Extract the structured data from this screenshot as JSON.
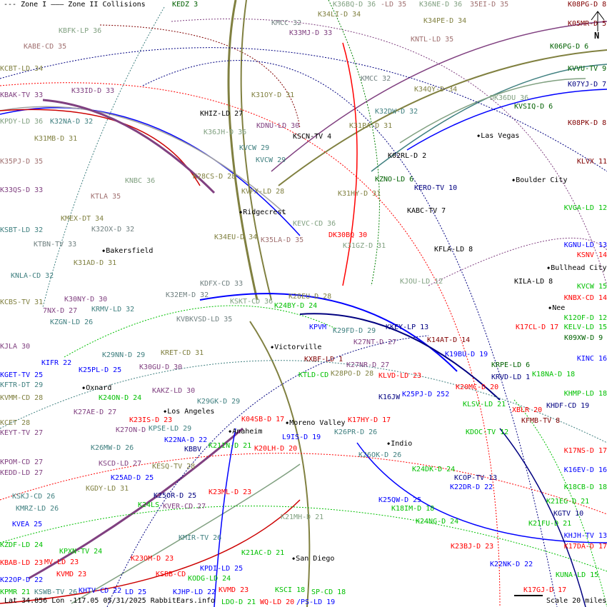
{
  "legend": {
    "text": "--- Zone I  ——— Zone II Collisions"
  },
  "footer": {
    "coords": "Lat 34.856 Lon -117.05 05/31/2025 RabbitEars.info",
    "scale": "Scale 20 miles"
  },
  "compass": {
    "label": "N",
    "icon": "north-arrow-icon"
  },
  "colors": {
    "olive": "#808040",
    "purple": "#804080",
    "greygreen": "#80a080",
    "rosy": "#a07070",
    "teal": "#408080",
    "red": "#ff0000",
    "green": "#00c000",
    "blue": "#0000ff",
    "darkblue": "#000080",
    "darkred": "#800000",
    "darkgreen": "#006000",
    "black": "#000000",
    "grey": "#708080"
  },
  "cities": [
    "Las Vegas",
    "Boulder City",
    "Ridgecrest",
    "Bakersfield",
    "Bullhead City",
    "Victorville",
    "Oxnard",
    "Los Angeles",
    "Moreno Valley",
    "Anaheim",
    "Indio",
    "San Diego",
    "Nee"
  ],
  "stations": [
    {
      "label": "KEDZ 3",
      "color": "darkgreen"
    },
    {
      "label": "KBFK-LP 36",
      "color": "greygreen"
    },
    {
      "label": "KABE-CD 35",
      "color": "rosy"
    },
    {
      "label": "KCBT-LD 34",
      "color": "olive"
    },
    {
      "label": "KBAK-TV 33",
      "color": "purple"
    },
    {
      "label": "K33ID-D 33",
      "color": "purple"
    },
    {
      "label": "KPDY-LD 36",
      "color": "greygreen"
    },
    {
      "label": "K32NA-D 32",
      "color": "teal"
    },
    {
      "label": "K31MB-D 31",
      "color": "olive"
    },
    {
      "label": "K35PJ-D 35",
      "color": "rosy"
    },
    {
      "label": "K33QS-D 33",
      "color": "purple"
    },
    {
      "label": "KTLA 35",
      "color": "rosy"
    },
    {
      "label": "KNBC 36",
      "color": "greygreen"
    },
    {
      "label": "K28CS-D 28",
      "color": "olive"
    },
    {
      "label": "KVPX-LD 28",
      "color": "olive"
    },
    {
      "label": "KHIZ-LD 27",
      "color": "black"
    },
    {
      "label": "K31OY-D 31",
      "color": "olive"
    },
    {
      "label": "KDNU-LD 30",
      "color": "purple"
    },
    {
      "label": "K36JH-D 36",
      "color": "greygreen"
    },
    {
      "label": "KVCW 29",
      "color": "teal"
    },
    {
      "label": "KVCW 29",
      "color": "teal"
    },
    {
      "label": "KSCN-TV 4",
      "color": "black"
    },
    {
      "label": "KMCC 32",
      "color": "grey"
    },
    {
      "label": "K33MJ-D 33",
      "color": "purple"
    },
    {
      "label": "K36BQ-D 36",
      "color": "greygreen"
    },
    {
      "label": "-LD 35",
      "color": "rosy"
    },
    {
      "label": "K34LI-D 34",
      "color": "olive"
    },
    {
      "label": "K36NE-D 36",
      "color": "greygreen"
    },
    {
      "label": "35EI-D 35",
      "color": "rosy"
    },
    {
      "label": "K34PE-D 34",
      "color": "olive"
    },
    {
      "label": "KNTL-LD 35",
      "color": "rosy"
    },
    {
      "label": "KMCC 32",
      "color": "grey"
    },
    {
      "label": "K34QY-D 34",
      "color": "olive"
    },
    {
      "label": "K32DW-D 32",
      "color": "teal"
    },
    {
      "label": "K31PA-D 31",
      "color": "olive"
    },
    {
      "label": "DK36DU 36",
      "color": "greygreen"
    },
    {
      "label": "KVSIQ-D 6",
      "color": "darkgreen"
    },
    {
      "label": "K08PG-D 8",
      "color": "darkred"
    },
    {
      "label": "K05MR-D 5",
      "color": "darkred"
    },
    {
      "label": "K06PG-D 6",
      "color": "darkgreen"
    },
    {
      "label": "KVVU-TV 9",
      "color": "darkgreen"
    },
    {
      "label": "K07YJ-D 7",
      "color": "darkblue"
    },
    {
      "label": "K08PK-D 8",
      "color": "darkred"
    },
    {
      "label": "KLVX 11",
      "color": "darkred"
    },
    {
      "label": "K02RL-D 2",
      "color": "black"
    },
    {
      "label": "KZNO-LD 6",
      "color": "darkgreen"
    },
    {
      "label": "KERO-TV 10",
      "color": "darkblue"
    },
    {
      "label": "K31HY-D 31",
      "color": "olive"
    },
    {
      "label": "KABC-TV 7",
      "color": "black"
    },
    {
      "label": "KVGA-LD 12",
      "color": "green"
    },
    {
      "label": "KEVC-CD 36",
      "color": "greygreen"
    },
    {
      "label": "K34EU-D 34",
      "color": "olive"
    },
    {
      "label": "K35LA-D 35",
      "color": "rosy"
    },
    {
      "label": "DK30BQ 30",
      "color": "red"
    },
    {
      "label": "K31GZ-D 31",
      "color": "greygreen"
    },
    {
      "label": "KFLA-LD 8",
      "color": "black"
    },
    {
      "label": "KSNV 14",
      "color": "red"
    },
    {
      "label": "KGNU-LD 13",
      "color": "blue"
    },
    {
      "label": "KILA-LD 8",
      "color": "black"
    },
    {
      "label": "KVCW 15",
      "color": "green"
    },
    {
      "label": "KNBX-CD 14",
      "color": "red"
    },
    {
      "label": "K12OF-D 12",
      "color": "green"
    },
    {
      "label": "KJOU-LD 12",
      "color": "greygreen"
    },
    {
      "label": "KMEX-DT 34",
      "color": "olive"
    },
    {
      "label": "KSBT-LD 32",
      "color": "teal"
    },
    {
      "label": "K32OX-D 32",
      "color": "grey"
    },
    {
      "label": "KTBN-TV 33",
      "color": "grey"
    },
    {
      "label": "K31AD-D 31",
      "color": "olive"
    },
    {
      "label": "KNLA-CD 32",
      "color": "teal"
    },
    {
      "label": "K30NY-D 30",
      "color": "purple"
    },
    {
      "label": "7NX-D 27",
      "color": "purple"
    },
    {
      "label": "KCBS-TV 31",
      "color": "olive"
    },
    {
      "label": "KRMV-LD 32",
      "color": "teal"
    },
    {
      "label": "K32EM-D 32",
      "color": "grey"
    },
    {
      "label": "KDFX-CD 33",
      "color": "grey"
    },
    {
      "label": "KSKT-CD 36",
      "color": "greygreen"
    },
    {
      "label": "K28EU-D 28",
      "color": "olive"
    },
    {
      "label": "K24BY-D 24",
      "color": "green"
    },
    {
      "label": "KZGN-LD 26",
      "color": "teal"
    },
    {
      "label": "KVBKVSD-LD 35",
      "color": "grey"
    },
    {
      "label": "KPVM",
      "color": "blue"
    },
    {
      "label": "K29FD-D 29",
      "color": "teal"
    },
    {
      "label": "KKEY-LP 13",
      "color": "darkblue"
    },
    {
      "label": "K27NT-D 27",
      "color": "purple"
    },
    {
      "label": "K14AT-D 14",
      "color": "darkred"
    },
    {
      "label": "K17CL-D 17",
      "color": "red"
    },
    {
      "label": "KELV-LD 15",
      "color": "green"
    },
    {
      "label": "K09XW-D 9",
      "color": "darkgreen"
    },
    {
      "label": "KINC 16",
      "color": "blue"
    },
    {
      "label": "KJLA 30",
      "color": "purple"
    },
    {
      "label": "KIFR 22",
      "color": "blue"
    },
    {
      "label": "K29NN-D 29",
      "color": "teal"
    },
    {
      "label": "KRET-CD 31",
      "color": "olive"
    },
    {
      "label": "KXBF-LD 1",
      "color": "darkred"
    },
    {
      "label": "K27NR-D 27",
      "color": "purple"
    },
    {
      "label": "K19BU-D 19",
      "color": "blue"
    },
    {
      "label": "KRPE-LD 6",
      "color": "darkgreen"
    },
    {
      "label": "KRVD-LD 1",
      "color": "darkblue"
    },
    {
      "label": "K18NA-D 18",
      "color": "green"
    },
    {
      "label": "KGET-TV 25",
      "color": "blue"
    },
    {
      "label": "K25PL-D 25",
      "color": "blue"
    },
    {
      "label": "K30GU-D 30",
      "color": "purple"
    },
    {
      "label": "KFTR-DT 29",
      "color": "teal"
    },
    {
      "label": "KTLD-CD",
      "color": "green"
    },
    {
      "label": "K28PO-D 28",
      "color": "olive"
    },
    {
      "label": "KLVD-LD 23",
      "color": "red"
    },
    {
      "label": "K16JW",
      "color": "darkblue"
    },
    {
      "label": "K25PJ-D 252",
      "color": "blue"
    },
    {
      "label": "K20MC-D 20",
      "color": "red"
    },
    {
      "label": "KHMP-LD 18",
      "color": "green"
    },
    {
      "label": "KVMM-CD 28",
      "color": "olive"
    },
    {
      "label": "KAKZ-LD 30",
      "color": "purple"
    },
    {
      "label": "K24ON-D 24",
      "color": "green"
    },
    {
      "label": "K29GK-D 29",
      "color": "teal"
    },
    {
      "label": "KLSV-LD 21",
      "color": "green"
    },
    {
      "label": "XBLR 20",
      "color": "red"
    },
    {
      "label": "KHDF-CD 19",
      "color": "darkblue"
    },
    {
      "label": "KCET 28",
      "color": "olive"
    },
    {
      "label": "K27AE-D 27",
      "color": "purple"
    },
    {
      "label": "K23IS-D 23",
      "color": "red"
    },
    {
      "label": "K04SB-D 17",
      "color": "red"
    },
    {
      "label": "K17HY-D 17",
      "color": "red"
    },
    {
      "label": "KFMB-TV 8",
      "color": "darkred"
    },
    {
      "label": "KEYT-TV 27",
      "color": "purple"
    },
    {
      "label": "K27ON-D",
      "color": "purple"
    },
    {
      "label": "KPSE-LD 29",
      "color": "teal"
    },
    {
      "label": "K22NA-D 22",
      "color": "blue"
    },
    {
      "label": "K26PR-D 26",
      "color": "teal"
    },
    {
      "label": "KDOC-TV 12",
      "color": "green"
    },
    {
      "label": "KBBV",
      "color": "darkblue"
    },
    {
      "label": "K21IN-D 21",
      "color": "green"
    },
    {
      "label": "K20LH-D 20",
      "color": "red"
    },
    {
      "label": "L9IS-D 19",
      "color": "blue"
    },
    {
      "label": "K17NS-D 17",
      "color": "red"
    },
    {
      "label": "KPOM-CD 27",
      "color": "purple"
    },
    {
      "label": "K26MW-D 26",
      "color": "teal"
    },
    {
      "label": "KSCD-LD 27",
      "color": "purple"
    },
    {
      "label": "KESQ-TV 28",
      "color": "olive"
    },
    {
      "label": "K26OK-D 26",
      "color": "teal"
    },
    {
      "label": "K24DK-D 24",
      "color": "green"
    },
    {
      "label": "K16EV-D 16",
      "color": "blue"
    },
    {
      "label": "KEDD-LD 27",
      "color": "purple"
    },
    {
      "label": "K25AD-D 25",
      "color": "blue"
    },
    {
      "label": "KCOP-TV 13",
      "color": "darkblue"
    },
    {
      "label": "KGDY-LD 31",
      "color": "olive"
    },
    {
      "label": "K22DR-D 22",
      "color": "blue"
    },
    {
      "label": "K18CB-D 18",
      "color": "green"
    },
    {
      "label": "K23ML-D 23",
      "color": "red"
    },
    {
      "label": "KSKJ-CD 26",
      "color": "teal"
    },
    {
      "label": "K25OR-D 25",
      "color": "darkblue"
    },
    {
      "label": "K25QW-D 25",
      "color": "blue"
    },
    {
      "label": "K21EG-D 21",
      "color": "green"
    },
    {
      "label": "KMRZ-LD 26",
      "color": "teal"
    },
    {
      "label": "K24LS",
      "color": "green"
    },
    {
      "label": "KVER-CD 27",
      "color": "purple"
    },
    {
      "label": "K18IM-D 18",
      "color": "green"
    },
    {
      "label": "KGTV 10",
      "color": "darkblue"
    },
    {
      "label": "K21MH-D 21",
      "color": "greygreen"
    },
    {
      "label": "K24NG-D 24",
      "color": "green"
    },
    {
      "label": "K21FU-D 21",
      "color": "green"
    },
    {
      "label": "KHJH-TV 13",
      "color": "blue"
    },
    {
      "label": "KVEA 25",
      "color": "blue"
    },
    {
      "label": "KMIR-TV 26",
      "color": "teal"
    },
    {
      "label": "KZDF-LD 24",
      "color": "green"
    },
    {
      "label": "K23BJ-D 23",
      "color": "red"
    },
    {
      "label": "K17DA-D 17",
      "color": "red"
    },
    {
      "label": "KPXN-TV 24",
      "color": "green"
    },
    {
      "label": "K21AC-D 21",
      "color": "green"
    },
    {
      "label": "K23OM-D 23",
      "color": "red"
    },
    {
      "label": "KBAB-LD 23",
      "color": "red"
    },
    {
      "label": "MV-LD 23",
      "color": "red"
    },
    {
      "label": "K22NK-D 22",
      "color": "blue"
    },
    {
      "label": "KPDI-LD 25",
      "color": "blue"
    },
    {
      "label": "KVMD 23",
      "color": "red"
    },
    {
      "label": "KSBB-CD",
      "color": "red"
    },
    {
      "label": "KODG-LD 24",
      "color": "green"
    },
    {
      "label": "KUNA-LD 15",
      "color": "green"
    },
    {
      "label": "K22OP-D 22",
      "color": "blue"
    },
    {
      "label": "KSCI 18",
      "color": "green"
    },
    {
      "label": "K17GJ-D 17",
      "color": "red"
    },
    {
      "label": "KPMR 21",
      "color": "green"
    },
    {
      "label": "KHTV-CD 22",
      "color": "blue"
    },
    {
      "label": "KVMD 23",
      "color": "red"
    },
    {
      "label": "KSWB-TV 26",
      "color": "teal"
    },
    {
      "label": "LD 25",
      "color": "blue"
    },
    {
      "label": "KJHP-LD 22",
      "color": "blue"
    },
    {
      "label": "LDO-D 21",
      "color": "green"
    },
    {
      "label": "WQ-LD 20",
      "color": "red"
    },
    {
      "label": "/PS-LD 19",
      "color": "blue"
    },
    {
      "label": "SP-CD 18",
      "color": "green"
    }
  ]
}
